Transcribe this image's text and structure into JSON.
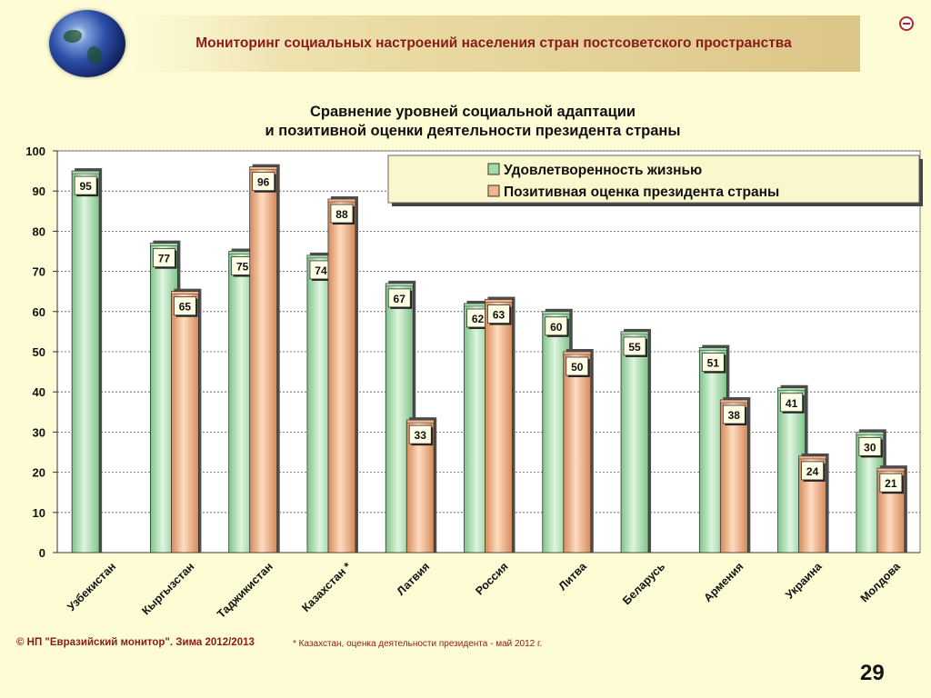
{
  "header": {
    "title": "Мониторинг социальных настроений населения стран постсоветского пространства",
    "icon": "globe-icon",
    "logo_icon": "emblem-icon"
  },
  "chart_data": {
    "type": "bar",
    "title_lines": [
      "Сравнение уровней социальной адаптации",
      "и позитивной оценки деятельности президента страны"
    ],
    "categories": [
      "Узбекистан",
      "Кыргызстан",
      "Таджикистан",
      "Казахстан *",
      "Латвия",
      "Россия",
      "Литва",
      "Беларусь",
      "Армения",
      "Украина",
      "Молдова"
    ],
    "series": [
      {
        "name": "Удовлетворенность жизнью",
        "values": [
          95,
          77,
          75,
          74,
          67,
          62,
          60,
          55,
          51,
          41,
          30
        ],
        "color": "#a3dba8"
      },
      {
        "name": "Позитивная оценка президента страны",
        "values": [
          null,
          65,
          96,
          88,
          33,
          63,
          50,
          null,
          38,
          24,
          21
        ],
        "color": "#f0b58e"
      }
    ],
    "ylim": [
      0,
      100
    ],
    "yticks": [
      0,
      10,
      20,
      30,
      40,
      50,
      60,
      70,
      80,
      90,
      100
    ],
    "grid": "dotted horizontal",
    "legend_position": "top-right",
    "data_labels": true,
    "xlabel": "",
    "ylabel": ""
  },
  "footer": {
    "copyright": "© НП \"Евразийский монитор\". Зима 2012/2013",
    "note": "* Казахстан, оценка деятельности президента - май 2012 г.",
    "page_number": "29"
  }
}
